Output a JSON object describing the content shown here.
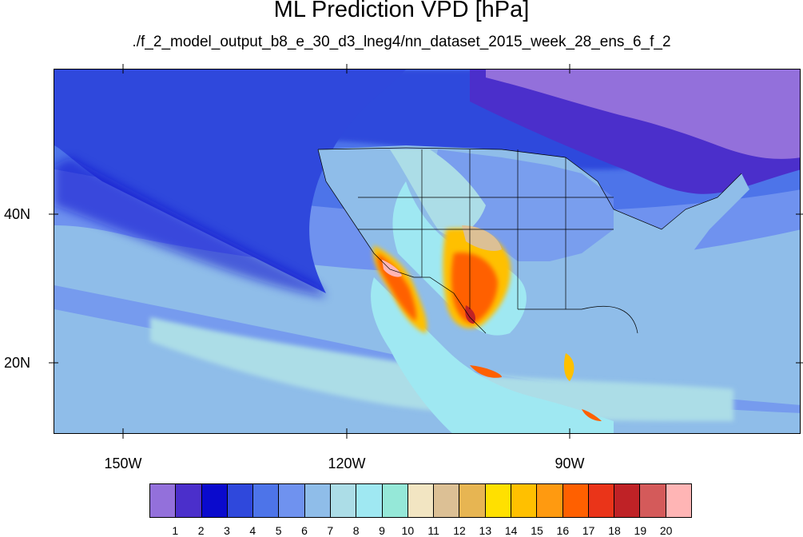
{
  "title": "ML Prediction VPD [hPa]",
  "subtitle": "./f_2_model_output_b8_e_30_d3_lneg4/nn_dataset_2015_week_28_ens_6_f_2",
  "lat_labels": [
    "40N",
    "20N"
  ],
  "lon_labels": [
    "150W",
    "120W",
    "90W"
  ],
  "colorbar": {
    "levels": [
      "1",
      "2",
      "3",
      "4",
      "5",
      "6",
      "7",
      "8",
      "9",
      "10",
      "11",
      "12",
      "13",
      "14",
      "15",
      "16",
      "17",
      "18",
      "19",
      "20"
    ],
    "colors": [
      "#9370db",
      "#4b2fcb",
      "#0a0acd",
      "#2f48dc",
      "#4d74e9",
      "#6f92ef",
      "#8fbde9",
      "#acdde7",
      "#9fe8f2",
      "#95e8d8",
      "#f2e5c2",
      "#dcc095",
      "#e7b552",
      "#ffe000",
      "#ffc000",
      "#ff9a10",
      "#ff6000",
      "#ea3419",
      "#bf2226",
      "#d45a5a",
      "#ffb5b5"
    ]
  }
}
